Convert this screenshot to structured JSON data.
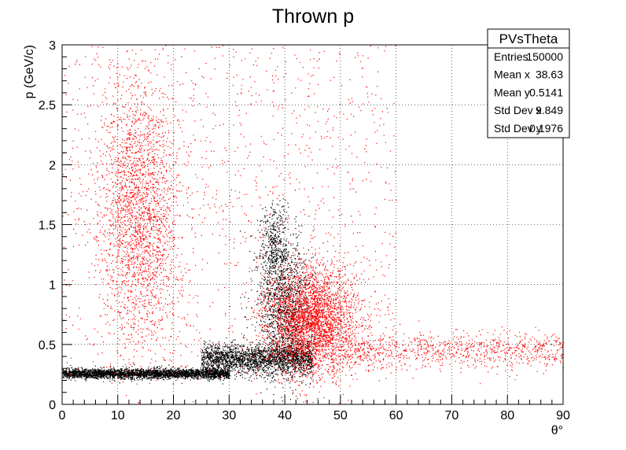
{
  "chart_data": {
    "type": "scatter",
    "title": "Thrown p",
    "xlabel": "θ°",
    "ylabel": "p (GeV/c)",
    "xlim": [
      0,
      90
    ],
    "ylim": [
      0,
      3
    ],
    "x_ticks": [
      "0",
      "10",
      "20",
      "30",
      "40",
      "50",
      "60",
      "70",
      "80",
      "90"
    ],
    "y_ticks": [
      "0",
      "0.5",
      "1",
      "1.5",
      "2",
      "2.5",
      "3"
    ],
    "grid": true,
    "series": [
      {
        "color": "#000000",
        "clusters": [
          {
            "kind": "band",
            "x": [
              0,
              30
            ],
            "y_center": 0.26,
            "y_spread": 0.02,
            "weight": 0.35
          },
          {
            "kind": "band",
            "x": [
              25,
              45
            ],
            "y_center": 0.38,
            "y_spread": 0.06,
            "weight": 0.25
          },
          {
            "kind": "blob",
            "x_center": 40,
            "x_sd": 2.5,
            "y_center": 0.8,
            "y_sd": 0.3,
            "weight": 0.15
          },
          {
            "kind": "blob",
            "x_center": 38,
            "x_sd": 1.2,
            "y_center": 1.3,
            "y_sd": 0.2,
            "weight": 0.05
          }
        ]
      },
      {
        "color": "#ff0000",
        "clusters": [
          {
            "kind": "blob",
            "x_center": 14,
            "x_sd": 3.5,
            "y_center": 1.6,
            "y_sd": 0.55,
            "weight": 0.25
          },
          {
            "kind": "blob",
            "x_center": 45,
            "x_sd": 4,
            "y_center": 0.7,
            "y_sd": 0.22,
            "weight": 0.35
          },
          {
            "kind": "uniform",
            "x": [
              0,
              60
            ],
            "y": [
              0.2,
              3
            ],
            "weight": 0.15
          },
          {
            "kind": "band",
            "x": [
              50,
              90
            ],
            "y_center": 0.45,
            "y_spread": 0.08,
            "weight": 0.1
          }
        ]
      }
    ],
    "stats": {
      "name": "PVsTheta",
      "rows": [
        {
          "label": "Entries",
          "value": "150000"
        },
        {
          "label": "Mean x",
          "value": "38.63"
        },
        {
          "label": "Mean y",
          "value": "0.5141"
        },
        {
          "label": "Std Dev x",
          "value": "9.849"
        },
        {
          "label": "Std Dev y",
          "value": "0.1976"
        }
      ]
    }
  }
}
